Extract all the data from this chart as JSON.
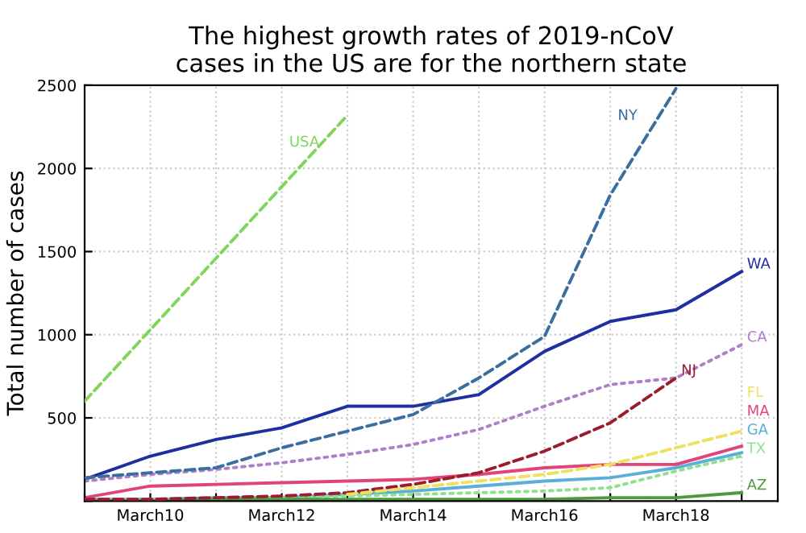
{
  "chart_data": {
    "type": "line",
    "title": "The highest growth rates of 2019-nCoV\ncases in the US are for the northern state",
    "ylabel": "Total number of cases",
    "categories": [
      null,
      "March10",
      null,
      "March12",
      null,
      "March14",
      null,
      "March16",
      null,
      "March18",
      null
    ],
    "ylim": [
      0,
      2500
    ],
    "yticks": [
      {
        "value": 0,
        "label": null
      },
      500,
      1000,
      1500,
      2000,
      2500
    ],
    "grid": true,
    "legend": false,
    "marker": "none",
    "series": [
      {
        "name": "USA",
        "color": "#7fd65a",
        "line_style": "dashed",
        "values": [
          600,
          1030,
          1460,
          1890,
          2320,
          null,
          null,
          null,
          null,
          null,
          null
        ]
      },
      {
        "name": "NY",
        "color": "#3a6e9e",
        "line_style": "dashed",
        "values": [
          140,
          170,
          200,
          320,
          420,
          520,
          740,
          990,
          1840,
          2480,
          null
        ]
      },
      {
        "name": "WA",
        "color": "#1f2fa0",
        "line_style": "solid",
        "values": [
          130,
          270,
          370,
          440,
          570,
          570,
          640,
          900,
          1080,
          1150,
          1380
        ]
      },
      {
        "name": "CA",
        "color": "#b07fc8",
        "line_style": "dotted",
        "values": [
          120,
          160,
          190,
          230,
          280,
          340,
          430,
          570,
          700,
          740,
          940
        ]
      },
      {
        "name": "NJ",
        "color": "#9b1c2c",
        "line_style": "dashed",
        "values": [
          10,
          10,
          20,
          30,
          50,
          100,
          170,
          300,
          470,
          740,
          null
        ]
      },
      {
        "name": "FL",
        "color": "#f0e060",
        "line_style": "dashed",
        "values": [
          null,
          null,
          null,
          null,
          40,
          80,
          120,
          160,
          220,
          320,
          420
        ]
      },
      {
        "name": "MA",
        "color": "#e0447a",
        "line_style": "solid",
        "values": [
          20,
          90,
          100,
          110,
          120,
          130,
          160,
          200,
          220,
          220,
          330
        ]
      },
      {
        "name": "GA",
        "color": "#5aaed8",
        "line_style": "solid",
        "values": [
          10,
          10,
          20,
          20,
          40,
          60,
          90,
          120,
          140,
          200,
          290
        ]
      },
      {
        "name": "TX",
        "color": "#8fe08f",
        "line_style": "dotted",
        "values": [
          0,
          10,
          10,
          20,
          30,
          40,
          50,
          60,
          80,
          180,
          270
        ]
      },
      {
        "name": "AZ",
        "color": "#4f9a3f",
        "line_style": "solid",
        "values": [
          0,
          0,
          10,
          10,
          10,
          10,
          10,
          10,
          20,
          20,
          50
        ]
      }
    ]
  }
}
